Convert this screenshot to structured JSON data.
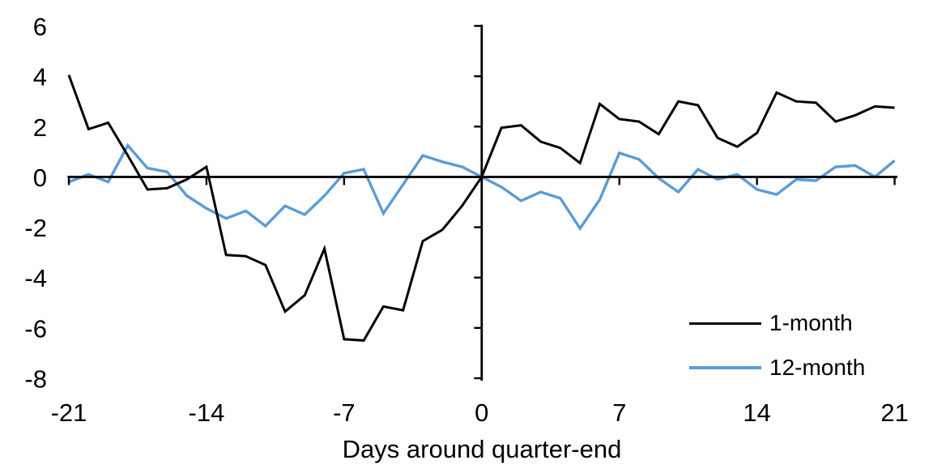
{
  "chart_data": {
    "type": "line",
    "title": "",
    "xlabel": "Days around quarter-end",
    "ylabel": "",
    "xlim": [
      -21,
      21
    ],
    "ylim": [
      -8,
      6
    ],
    "grid": false,
    "legend_position": "inside-bottom-right",
    "background": "#ffffff",
    "axis_color": "#000000",
    "text_color": "#000000",
    "x_ticks": [
      -21,
      -14,
      -7,
      0,
      7,
      14,
      21
    ],
    "x_tick_labels": [
      "-21",
      "-14",
      "-7",
      "0",
      "7",
      "14",
      "21"
    ],
    "y_ticks": [
      6,
      4,
      2,
      0,
      -2,
      -4,
      -6,
      -8
    ],
    "y_tick_labels": [
      "6",
      "4",
      "2",
      "0",
      "-2",
      "-4",
      "-6",
      "-8"
    ],
    "x": [
      -21,
      -20,
      -19,
      -18,
      -17,
      -16,
      -15,
      -14,
      -13,
      -12,
      -11,
      -10,
      -9,
      -8,
      -7,
      -6,
      -5,
      -4,
      -3,
      -2,
      -1,
      0,
      1,
      2,
      3,
      4,
      5,
      6,
      7,
      8,
      9,
      10,
      11,
      12,
      13,
      14,
      15,
      16,
      17,
      18,
      19,
      20,
      21
    ],
    "series": [
      {
        "name": "1-month",
        "color": "#000000",
        "values": [
          4.05,
          1.9,
          2.15,
          0.85,
          -0.5,
          -0.45,
          -0.1,
          0.4,
          -3.1,
          -3.15,
          -3.5,
          -5.35,
          -4.7,
          -2.85,
          -6.45,
          -6.5,
          -5.15,
          -5.3,
          -2.55,
          -2.1,
          -1.15,
          0,
          1.95,
          2.05,
          1.4,
          1.15,
          0.55,
          2.9,
          2.3,
          2.2,
          1.7,
          3.0,
          2.85,
          1.55,
          1.2,
          1.75,
          3.35,
          3.0,
          2.95,
          2.2,
          2.45,
          2.8,
          2.75
        ]
      },
      {
        "name": "12-month",
        "color": "#5B9BD5",
        "values": [
          -0.2,
          0.1,
          -0.2,
          1.25,
          0.35,
          0.2,
          -0.75,
          -1.25,
          -1.65,
          -1.35,
          -1.95,
          -1.15,
          -1.5,
          -0.75,
          0.15,
          0.3,
          -1.45,
          -0.3,
          0.85,
          0.6,
          0.4,
          0,
          -0.4,
          -0.95,
          -0.6,
          -0.85,
          -2.05,
          -0.9,
          0.95,
          0.7,
          -0.05,
          -0.6,
          0.3,
          -0.1,
          0.1,
          -0.5,
          -0.7,
          -0.1,
          -0.15,
          0.4,
          0.45,
          0.0,
          0.65
        ]
      }
    ]
  }
}
